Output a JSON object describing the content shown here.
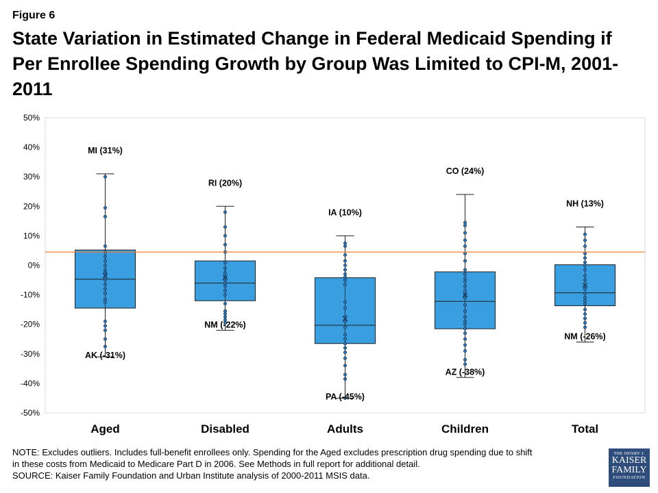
{
  "figure_label": "Figure 6",
  "title": "State Variation in Estimated Change in Federal Medicaid Spending if Per Enrollee Spending Growth by Group Was Limited to CPI-M, 2001-2011",
  "note": {
    "line1": "NOTE: Excludes outliers. Includes full-benefit enrollees only. Spending for the Aged excludes prescription drug spending due to shift",
    "line2": "in these costs from Medicaid to Medicare Part D in 2006. See Methods in full report for additional detail.",
    "line3": "SOURCE: Kaiser Family Foundation  and Urban Institute  analysis of 2000-2011 MSIS data."
  },
  "logo": {
    "line1": "THE HENRY J.",
    "line2": "KAISER",
    "line3": "FAMILY",
    "line4": "FOUNDATION"
  },
  "colors": {
    "box_fill": "#3a9fe0",
    "box_stroke": "#1f1f1f",
    "reference_line": "#ed7d31",
    "dot_fill": "#2e75b6"
  },
  "chart_data": {
    "type": "box",
    "ylim": [
      -50,
      50
    ],
    "yticks": [
      50,
      40,
      30,
      20,
      10,
      0,
      -10,
      -20,
      -30,
      -40,
      -50
    ],
    "ytick_labels": [
      "50%",
      "40%",
      "30%",
      "20%",
      "10%",
      "0%",
      "-10%",
      "-20%",
      "-30%",
      "-40%",
      "-50%"
    ],
    "reference_line": 4.5,
    "categories": [
      "Aged",
      "Disabled",
      "Adults",
      "Children",
      "Total"
    ],
    "series": [
      {
        "category": "Aged",
        "min": -31,
        "q1": -14.5,
        "median": -4.7,
        "q3": 5.2,
        "max": 31,
        "mean": -3.5,
        "max_label": "MI (31%)",
        "min_label": "AK (-31%)",
        "points": [
          30,
          19.5,
          16.5,
          6.5,
          4.5,
          3,
          1.5,
          0,
          -1.5,
          -2.5,
          -3,
          -4,
          -5,
          -6.5,
          -8,
          -9.5,
          -11.5,
          -12.5,
          -19,
          -20.5,
          -22,
          -25,
          -27.5
        ]
      },
      {
        "category": "Disabled",
        "min": -22,
        "q1": -12,
        "median": -6,
        "q3": 1.5,
        "max": 20,
        "mean": -4,
        "max_label": "RI (20%)",
        "min_label": "NM (-22%)",
        "points": [
          18,
          13,
          10,
          7,
          4.5,
          1,
          -1,
          -2.5,
          -4,
          -5,
          -6,
          -7,
          -8.5,
          -10,
          -13,
          -15.5,
          -16.5,
          -17.5,
          -18.5,
          -19.5
        ]
      },
      {
        "category": "Adults",
        "min": -45,
        "q1": -26.5,
        "median": -20.3,
        "q3": -4.2,
        "max": 10,
        "mean": -18,
        "max_label": "IA (10%)",
        "min_label": "PA (-45%)",
        "points": [
          7.5,
          6.5,
          3.5,
          1.5,
          0,
          -1.5,
          -3,
          -4,
          -5,
          -6.5,
          -12.5,
          -14.5,
          -17.5,
          -19,
          -21,
          -23.5,
          -25,
          -26.5,
          -28,
          -29.5,
          -31.5,
          -34,
          -37,
          -38.5,
          -45
        ]
      },
      {
        "category": "Children",
        "min": -38,
        "q1": -21.5,
        "median": -12.2,
        "q3": -2.2,
        "max": 24,
        "mean": -10,
        "max_label": "CO (24%)",
        "min_label": "AZ (-38%)",
        "points": [
          14.5,
          13.5,
          11,
          8.5,
          6.5,
          4,
          1.5,
          -1.5,
          -3,
          -4.5,
          -5.5,
          -7,
          -8.5,
          -10,
          -11,
          -13.5,
          -15.5,
          -17.5,
          -19,
          -20,
          -21.5,
          -23,
          -25,
          -27,
          -29,
          -32,
          -33.5
        ]
      },
      {
        "category": "Total",
        "min": -26,
        "q1": -13.7,
        "median": -9.3,
        "q3": 0.2,
        "max": 13,
        "mean": -6.7,
        "max_label": "NH (13%)",
        "min_label": "NM (-26%)",
        "points": [
          10.5,
          8.5,
          6.5,
          4,
          2.5,
          1,
          0,
          -1.5,
          -3.5,
          -5,
          -7,
          -8,
          -9.5,
          -11,
          -12,
          -13,
          -15,
          -16.5,
          -18,
          -19.5,
          -21
        ]
      }
    ]
  }
}
